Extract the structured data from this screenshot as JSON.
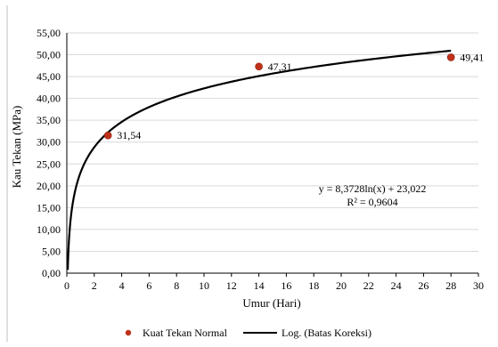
{
  "chart_data": {
    "type": "scatter",
    "xlabel": "Umur (Hari)",
    "ylabel": "Kau Tekan (MPa)",
    "xlim": [
      0,
      30
    ],
    "ylim": [
      0,
      55
    ],
    "x_ticks": [
      "0",
      "2",
      "4",
      "6",
      "8",
      "10",
      "12",
      "14",
      "16",
      "18",
      "20",
      "22",
      "24",
      "26",
      "28",
      "30"
    ],
    "y_ticks": [
      "0,00",
      "5,00",
      "10,00",
      "15,00",
      "20,00",
      "25,00",
      "30,00",
      "35,00",
      "40,00",
      "45,00",
      "50,00",
      "55,00"
    ],
    "grid": "horizontal",
    "legend_position": "bottom",
    "series": [
      {
        "name": "Kuat Tekan Normal",
        "kind": "scatter",
        "color": "#c0311a",
        "points": [
          {
            "x": 3,
            "y": 31.54,
            "label": "31,54"
          },
          {
            "x": 14,
            "y": 47.31,
            "label": "47,31"
          },
          {
            "x": 28,
            "y": 49.41,
            "label": "49,41"
          }
        ]
      },
      {
        "name": "Log. (Batas Koreksi)",
        "kind": "log-trendline",
        "color": "#000000",
        "a": 8.3728,
        "b": 23.022,
        "x_range": [
          0.07,
          28
        ]
      }
    ],
    "equation": "y = 8,3728ln(x) + 23,022",
    "r_squared": "R² = 0,9604"
  }
}
